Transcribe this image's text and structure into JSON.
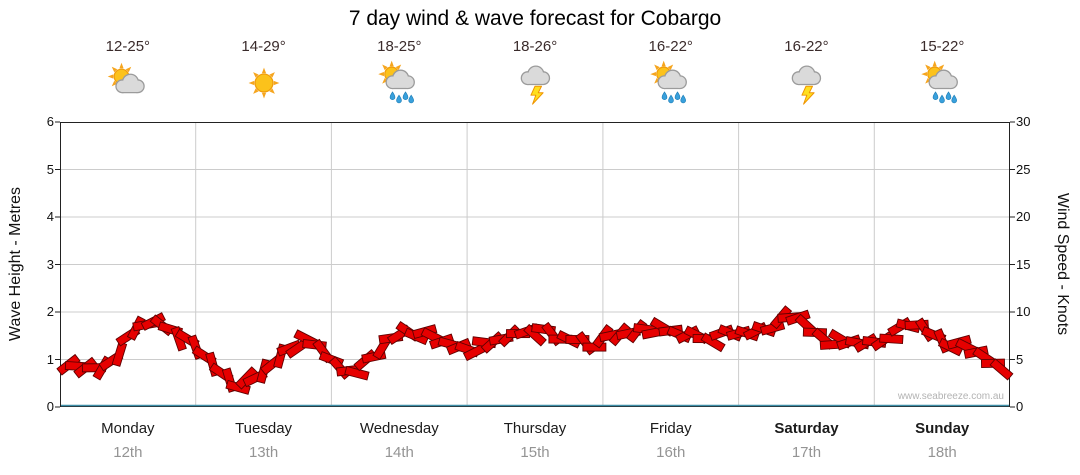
{
  "title": "7 day wind & wave forecast for Cobargo",
  "watermark": "www.seabreeze.com.au",
  "left_axis": {
    "label": "Wave Height - Metres",
    "ticks": [
      "6",
      "5",
      "4",
      "3",
      "2",
      "1",
      "0"
    ]
  },
  "right_axis": {
    "label": "Wind Speed - Knots",
    "ticks": [
      "30",
      "25",
      "20",
      "15",
      "10",
      "5",
      "0"
    ]
  },
  "days": [
    {
      "name": "Monday",
      "date": "12th",
      "temp": "12-25°",
      "icon": "sun-cloud",
      "bold": false
    },
    {
      "name": "Tuesday",
      "date": "13th",
      "temp": "14-29°",
      "icon": "sun",
      "bold": false
    },
    {
      "name": "Wednesday",
      "date": "14th",
      "temp": "18-25°",
      "icon": "sun-cloud-rain",
      "bold": false
    },
    {
      "name": "Thursday",
      "date": "15th",
      "temp": "18-26°",
      "icon": "cloud-storm",
      "bold": false
    },
    {
      "name": "Friday",
      "date": "16th",
      "temp": "16-22°",
      "icon": "sun-cloud-rain",
      "bold": false
    },
    {
      "name": "Saturday",
      "date": "17th",
      "temp": "16-22°",
      "icon": "cloud-storm",
      "bold": true
    },
    {
      "name": "Sunday",
      "date": "18th",
      "temp": "15-22°",
      "icon": "sun-cloud-rain",
      "bold": true
    }
  ],
  "colors": {
    "series_fill": "#e60000",
    "series_stroke": "#5f0000",
    "grid": "#cccccc",
    "axis": "#222222",
    "baseline": "#3e8fa8",
    "temp_text": "#3a2b2b",
    "date_text": "#949494"
  },
  "chart_data": {
    "type": "area",
    "title": "7 day wind & wave forecast for Cobargo",
    "ylabel_left": "Wave Height - Metres",
    "ylabel_right": "Wind Speed - Knots",
    "ylim_left": [
      0,
      6
    ],
    "ylim_right": [
      0,
      30
    ],
    "right_axis_conversion": "knots = metres x 5",
    "grid": true,
    "categories": [
      "Monday 12th",
      "Tuesday 13th",
      "Wednesday 14th",
      "Thursday 15th",
      "Friday 16th",
      "Saturday 17th",
      "Sunday 18th"
    ],
    "series": [
      {
        "name": "Wind & wave forecast band (wave height, metres)",
        "points_per_day": 8,
        "values_by_day": [
          [
            0.8,
            0.8,
            0.85,
            1.2,
            1.6,
            1.8,
            1.7,
            1.35
          ],
          [
            1.05,
            0.75,
            0.5,
            0.55,
            0.9,
            1.3,
            1.35,
            1.15
          ],
          [
            0.85,
            0.8,
            1.0,
            1.45,
            1.65,
            1.5,
            1.35,
            1.3
          ],
          [
            1.25,
            1.3,
            1.5,
            1.65,
            1.55,
            1.4,
            1.45,
            1.35
          ],
          [
            1.45,
            1.55,
            1.7,
            1.6,
            1.5,
            1.55,
            1.45,
            1.5
          ],
          [
            1.55,
            1.7,
            1.8,
            1.85,
            1.6,
            1.4,
            1.3,
            1.35
          ],
          [
            1.45,
            1.6,
            1.7,
            1.55,
            1.35,
            1.2,
            1.05,
            0.85
          ]
        ]
      }
    ]
  }
}
